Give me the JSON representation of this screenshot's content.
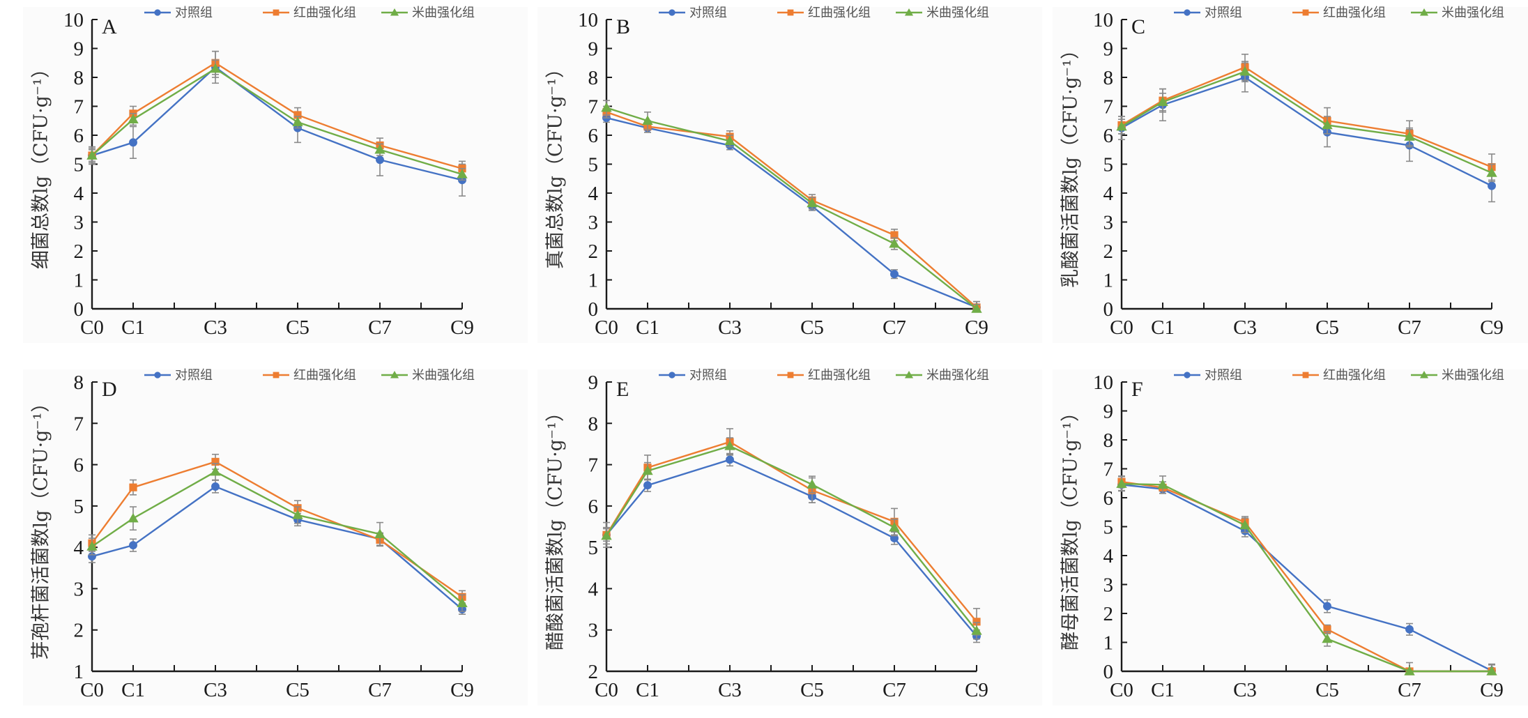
{
  "chart_data": [
    {
      "type": "line",
      "panel": "A",
      "title": "",
      "ylabel": "细菌总数lg（CFU·g⁻¹）",
      "xlabel": "",
      "categories": [
        "C0",
        "C1",
        "C3",
        "C5",
        "C7",
        "C9"
      ],
      "x": [
        0,
        1,
        3,
        5,
        7,
        9
      ],
      "xlim": [
        0,
        9
      ],
      "ylim": [
        0,
        10
      ],
      "yticks": [
        0,
        1,
        2,
        3,
        4,
        5,
        6,
        7,
        8,
        9,
        10
      ],
      "legend": "top",
      "series": [
        {
          "name": "对照组",
          "color": "#4472C4",
          "marker": "circle",
          "values": [
            5.3,
            5.75,
            8.35,
            6.25,
            5.15,
            4.45
          ],
          "errors": [
            0.3,
            0.55,
            0.55,
            0.5,
            0.55,
            0.55
          ]
        },
        {
          "name": "红曲强化组",
          "color": "#ED7D31",
          "marker": "square",
          "values": [
            5.3,
            6.75,
            8.5,
            6.7,
            5.65,
            4.85
          ],
          "errors": [
            0.25,
            0.25,
            0.4,
            0.25,
            0.25,
            0.25
          ]
        },
        {
          "name": "米曲强化组",
          "color": "#70AD47",
          "marker": "triangle",
          "values": [
            5.3,
            6.55,
            8.3,
            6.45,
            5.5,
            4.65
          ],
          "errors": [
            0.2,
            0.2,
            0.3,
            0.2,
            0.2,
            0.2
          ]
        }
      ]
    },
    {
      "type": "line",
      "panel": "B",
      "title": "",
      "ylabel": "真菌总数lg（CFU·g⁻¹）",
      "xlabel": "",
      "categories": [
        "C0",
        "C1",
        "C3",
        "C5",
        "C7",
        "C9"
      ],
      "x": [
        0,
        1,
        3,
        5,
        7,
        9
      ],
      "xlim": [
        0,
        9
      ],
      "ylim": [
        0,
        10
      ],
      "yticks": [
        0,
        1,
        2,
        3,
        4,
        5,
        6,
        7,
        8,
        9,
        10
      ],
      "legend": "top",
      "series": [
        {
          "name": "对照组",
          "color": "#4472C4",
          "marker": "circle",
          "values": [
            6.6,
            6.25,
            5.65,
            3.55,
            1.2,
            0.05
          ],
          "errors": [
            0.15,
            0.15,
            0.15,
            0.15,
            0.15,
            0.2
          ]
        },
        {
          "name": "红曲强化组",
          "color": "#ED7D31",
          "marker": "square",
          "values": [
            6.8,
            6.3,
            5.95,
            3.75,
            2.55,
            0.05
          ],
          "errors": [
            0.2,
            0.2,
            0.2,
            0.2,
            0.2,
            0.2
          ]
        },
        {
          "name": "米曲强化组",
          "color": "#70AD47",
          "marker": "triangle",
          "values": [
            6.95,
            6.5,
            5.8,
            3.65,
            2.25,
            0.0
          ],
          "errors": [
            0.25,
            0.3,
            0.2,
            0.2,
            0.2,
            0.15
          ]
        }
      ]
    },
    {
      "type": "line",
      "panel": "C",
      "title": "",
      "ylabel": "乳酸菌活菌数lg（CFU·g⁻¹）",
      "xlabel": "",
      "categories": [
        "C0",
        "C1",
        "C3",
        "C5",
        "C7",
        "C9"
      ],
      "x": [
        0,
        1,
        3,
        5,
        7,
        9
      ],
      "xlim": [
        0,
        9
      ],
      "ylim": [
        0,
        10
      ],
      "yticks": [
        0,
        1,
        2,
        3,
        4,
        5,
        6,
        7,
        8,
        9,
        10
      ],
      "legend": "top",
      "series": [
        {
          "name": "对照组",
          "color": "#4472C4",
          "marker": "circle",
          "values": [
            6.25,
            7.05,
            8.0,
            6.1,
            5.65,
            4.25
          ],
          "errors": [
            0.4,
            0.55,
            0.5,
            0.5,
            0.55,
            0.55
          ]
        },
        {
          "name": "红曲强化组",
          "color": "#ED7D31",
          "marker": "square",
          "values": [
            6.35,
            7.2,
            8.35,
            6.5,
            6.05,
            4.9
          ],
          "errors": [
            0.3,
            0.4,
            0.45,
            0.45,
            0.45,
            0.45
          ]
        },
        {
          "name": "米曲强化组",
          "color": "#70AD47",
          "marker": "triangle",
          "values": [
            6.3,
            7.15,
            8.2,
            6.35,
            5.95,
            4.7
          ],
          "errors": [
            0.25,
            0.3,
            0.35,
            0.3,
            0.3,
            0.3
          ]
        }
      ]
    },
    {
      "type": "line",
      "panel": "D",
      "title": "",
      "ylabel": "芽孢杆菌活菌数lg（CFU·g⁻¹）",
      "xlabel": "",
      "categories": [
        "C0",
        "C1",
        "C3",
        "C5",
        "C7",
        "C9"
      ],
      "x": [
        0,
        1,
        3,
        5,
        7,
        9
      ],
      "xlim": [
        0,
        9
      ],
      "ylim": [
        1,
        8
      ],
      "yticks": [
        1,
        2,
        3,
        4,
        5,
        6,
        7,
        8
      ],
      "legend": "top",
      "series": [
        {
          "name": "对照组",
          "color": "#4472C4",
          "marker": "circle",
          "values": [
            3.78,
            4.05,
            5.47,
            4.67,
            4.2,
            2.5
          ],
          "errors": [
            0.15,
            0.15,
            0.15,
            0.15,
            0.15,
            0.12
          ]
        },
        {
          "name": "红曲强化组",
          "color": "#ED7D31",
          "marker": "square",
          "values": [
            4.1,
            5.45,
            6.07,
            4.95,
            4.18,
            2.8
          ],
          "errors": [
            0.2,
            0.18,
            0.18,
            0.18,
            0.15,
            0.15
          ]
        },
        {
          "name": "米曲强化组",
          "color": "#70AD47",
          "marker": "triangle",
          "values": [
            4.02,
            4.7,
            5.83,
            4.78,
            4.32,
            2.65
          ],
          "errors": [
            0.2,
            0.28,
            0.2,
            0.2,
            0.28,
            0.2
          ]
        }
      ]
    },
    {
      "type": "line",
      "panel": "E",
      "title": "",
      "ylabel": "醋酸菌活菌数lg（CFU·g⁻¹）",
      "xlabel": "",
      "categories": [
        "C0",
        "C1",
        "C3",
        "C5",
        "C7",
        "C9"
      ],
      "x": [
        0,
        1,
        3,
        5,
        7,
        9
      ],
      "xlim": [
        0,
        9
      ],
      "ylim": [
        2,
        9
      ],
      "yticks": [
        2,
        3,
        4,
        5,
        6,
        7,
        8,
        9
      ],
      "legend": "top",
      "series": [
        {
          "name": "对照组",
          "color": "#4472C4",
          "marker": "circle",
          "values": [
            5.3,
            6.5,
            7.12,
            6.23,
            5.22,
            2.85
          ],
          "errors": [
            0.15,
            0.15,
            0.15,
            0.15,
            0.15,
            0.15
          ]
        },
        {
          "name": "红曲强化组",
          "color": "#ED7D31",
          "marker": "square",
          "values": [
            5.3,
            6.93,
            7.55,
            6.38,
            5.62,
            3.2
          ],
          "errors": [
            0.3,
            0.3,
            0.32,
            0.3,
            0.32,
            0.32
          ]
        },
        {
          "name": "米曲强化组",
          "color": "#70AD47",
          "marker": "triangle",
          "values": [
            5.28,
            6.85,
            7.45,
            6.52,
            5.48,
            2.98
          ],
          "errors": [
            0.2,
            0.2,
            0.2,
            0.2,
            0.2,
            0.2
          ]
        }
      ]
    },
    {
      "type": "line",
      "panel": "F",
      "title": "",
      "ylabel": "酵母菌活菌数lg（CFU·g⁻¹）",
      "xlabel": "",
      "categories": [
        "C0",
        "C1",
        "C3",
        "C5",
        "C7",
        "C9"
      ],
      "x": [
        0,
        1,
        3,
        5,
        7,
        9
      ],
      "xlim": [
        0,
        9
      ],
      "ylim": [
        0,
        10
      ],
      "yticks": [
        0,
        1,
        2,
        3,
        4,
        5,
        6,
        7,
        8,
        9,
        10
      ],
      "legend": "top",
      "series": [
        {
          "name": "对照组",
          "color": "#4472C4",
          "marker": "circle",
          "values": [
            6.45,
            6.3,
            4.85,
            2.25,
            1.45,
            0.02
          ],
          "errors": [
            0.2,
            0.15,
            0.2,
            0.22,
            0.2,
            0.2
          ]
        },
        {
          "name": "红曲强化组",
          "color": "#ED7D31",
          "marker": "square",
          "values": [
            6.55,
            6.35,
            5.15,
            1.45,
            0.0,
            0.0
          ],
          "errors": [
            0.2,
            0.2,
            0.2,
            0.15,
            0.3,
            0.25
          ]
        },
        {
          "name": "米曲强化组",
          "color": "#70AD47",
          "marker": "triangle",
          "values": [
            6.48,
            6.45,
            5.05,
            1.12,
            0.0,
            0.0
          ],
          "errors": [
            0.25,
            0.3,
            0.25,
            0.25,
            0.0,
            0.0
          ]
        }
      ]
    }
  ]
}
